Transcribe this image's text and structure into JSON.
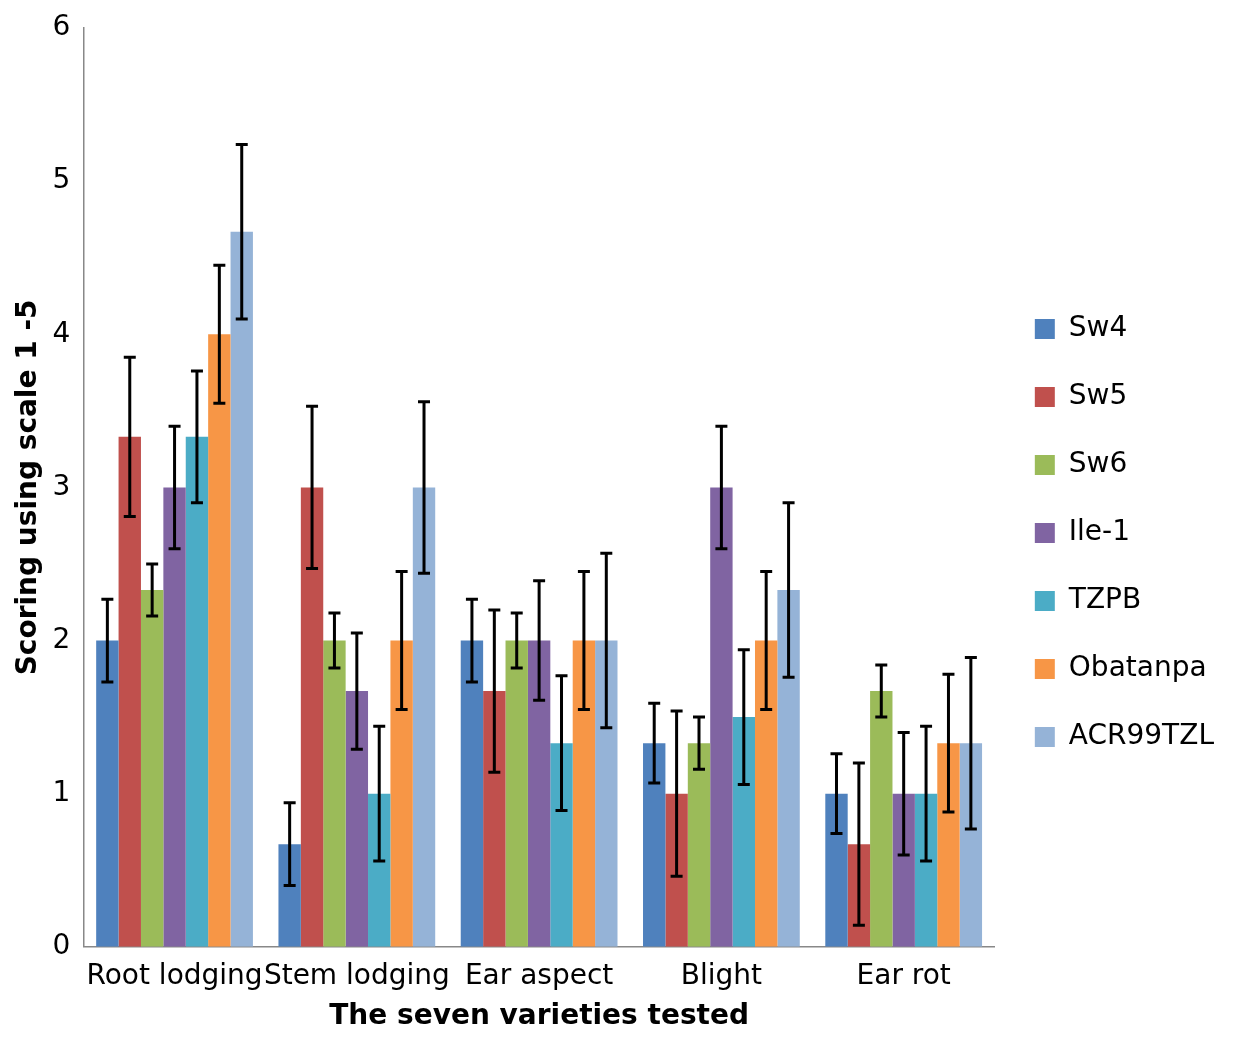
{
  "chart_data": {
    "type": "bar",
    "xlabel": "The seven varieties tested",
    "ylabel": "Scoring using scale 1 -5",
    "categories": [
      "Root lodging",
      "Stem lodging",
      "Ear aspect",
      "Blight",
      "Ear rot"
    ],
    "series": [
      {
        "name": "Sw4",
        "color": "#4f81bd",
        "values": [
          2,
          0.67,
          2,
          1.33,
          1
        ],
        "errors": [
          0.27,
          0.27,
          0.27,
          0.26,
          0.26
        ]
      },
      {
        "name": "Sw5",
        "color": "#c0504d",
        "values": [
          3.33,
          3,
          1.67,
          1,
          0.67
        ],
        "errors": [
          0.52,
          0.53,
          0.53,
          0.54,
          0.53
        ]
      },
      {
        "name": "Sw6",
        "color": "#9bbb59",
        "values": [
          2.33,
          2,
          2,
          1.33,
          1.67
        ],
        "errors": [
          0.17,
          0.18,
          0.18,
          0.17,
          0.17
        ]
      },
      {
        "name": "Ile-1",
        "color": "#8064a2",
        "values": [
          3,
          1.67,
          2,
          3,
          1
        ],
        "errors": [
          0.4,
          0.38,
          0.39,
          0.4,
          0.4
        ]
      },
      {
        "name": "TZPB",
        "color": "#4bacc6",
        "values": [
          3.33,
          1,
          1.33,
          1.5,
          1
        ],
        "errors": [
          0.43,
          0.44,
          0.44,
          0.44,
          0.44
        ]
      },
      {
        "name": "Obatanpa",
        "color": "#f79646",
        "values": [
          4,
          2,
          2,
          2,
          1.33
        ],
        "errors": [
          0.45,
          0.45,
          0.45,
          0.45,
          0.45
        ]
      },
      {
        "name": "ACR99TZL",
        "color": "#95b3d7",
        "values": [
          4.67,
          3,
          2,
          2.33,
          1.33
        ],
        "errors": [
          0.57,
          0.56,
          0.57,
          0.57,
          0.56
        ]
      }
    ],
    "ylim": [
      0,
      6
    ],
    "yticks": [
      0,
      1,
      2,
      3,
      4,
      5,
      6
    ],
    "grid": false,
    "legend": "right"
  }
}
